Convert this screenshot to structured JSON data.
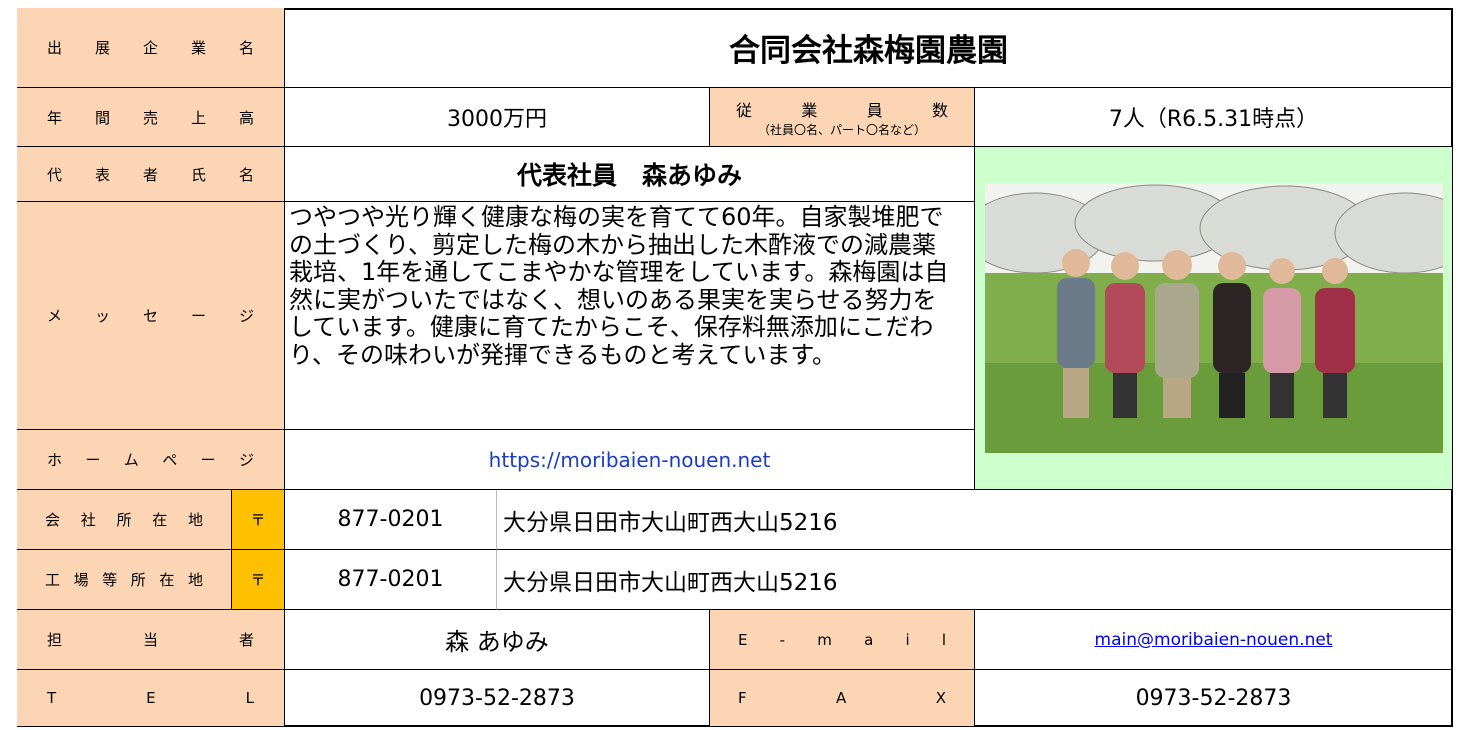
{
  "company": {
    "label": "出 展 企 業 名",
    "value": "合同会社森梅園農園"
  },
  "sales": {
    "label": "年 間 売 上 高",
    "value": "3000万円"
  },
  "employees": {
    "label": "従 業 員 数",
    "note": "（社員〇名、パート〇名など）",
    "value": "7人（R6.5.31時点）"
  },
  "representative": {
    "label": "代 表 者 氏 名",
    "value": "代表社員　森あゆみ"
  },
  "message": {
    "label": "メ ッ セ ー ジ",
    "value": "つやつや光り輝く健康な梅の実を育てて60年。自家製堆肥での土づくり、剪定した梅の木から抽出した木酢液での減農薬栽培、1年を通してこまやかな管理をしています。森梅園は自然に実がついたではなく、想いのある果実を実らせる努力をしています。健康に育てたからこそ、保存料無添加にこだわり、その味わいが発揮できるものと考えています。"
  },
  "homepage": {
    "label": "ホ ー ム ペ ー ジ",
    "value": "https://moribaien-nouen.net"
  },
  "office": {
    "label": "会 社 所 在 地",
    "postal_mark": "〒",
    "postal_code": "877-0201",
    "address": "大分県日田市大山町西大山5216"
  },
  "factory": {
    "label": "工 場 等 所 在 地",
    "postal_mark": "〒",
    "postal_code": "877-0201",
    "address": "大分県日田市大山町西大山5216"
  },
  "contact": {
    "label": "担 当 者",
    "value": "森 あゆみ",
    "email_label": "E - m a i l",
    "email": "main@moribaien-nouen.net"
  },
  "phone": {
    "tel_label": "T E L",
    "tel": "0973-52-2873",
    "fax_label": "F A X",
    "fax": "0973-52-2873"
  }
}
